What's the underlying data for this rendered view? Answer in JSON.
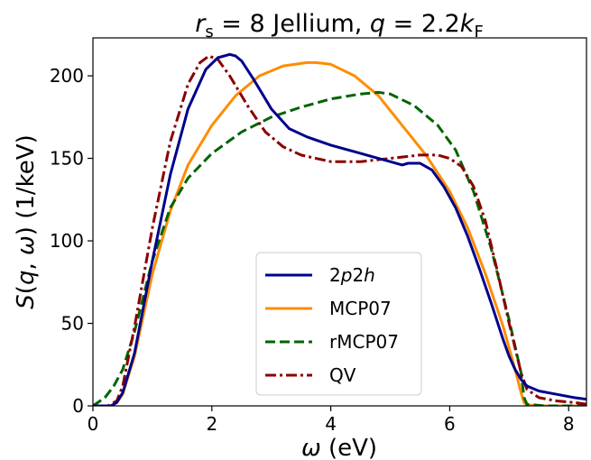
{
  "chart_data": {
    "type": "line",
    "title": "r_s = 8 Jellium, q = 2.2k_F",
    "title_parts": {
      "r": "r",
      "r_sub": "s",
      "eq1": " = 8 Jellium, ",
      "q": "q",
      "eq2": " = 2.2",
      "k": "k",
      "k_sub": "F"
    },
    "xlabel": "ω (eV)",
    "xlabel_parts": {
      "sym": "ω",
      "unit": " (eV)"
    },
    "ylabel": "S(q, ω) (1/keV)",
    "ylabel_parts": {
      "S": "S",
      "open": "(",
      "q": "q",
      "comma": ", ",
      "w": "ω",
      "close": ")",
      "unit": " (1/keV)"
    },
    "xlim": [
      0,
      8.3
    ],
    "ylim": [
      0,
      223
    ],
    "xticks": [
      0,
      2,
      4,
      6,
      8
    ],
    "yticks": [
      0,
      50,
      100,
      150,
      200
    ],
    "grid": false,
    "legend_position": "lower-center",
    "series": [
      {
        "name": "2p2h",
        "name_parts": {
          "pre": "2",
          "ital1": "p",
          "mid": "2",
          "ital2": "h"
        },
        "color": "#00008b",
        "dash": "solid",
        "x": [
          0,
          0.3,
          0.4,
          0.5,
          0.7,
          1.0,
          1.3,
          1.6,
          1.9,
          2.1,
          2.3,
          2.4,
          2.5,
          2.7,
          3.0,
          3.3,
          3.6,
          4.0,
          4.4,
          4.8,
          5.0,
          5.2,
          5.3,
          5.5,
          5.7,
          5.9,
          6.1,
          6.3,
          6.5,
          6.7,
          6.9,
          7.0,
          7.1,
          7.2,
          7.3,
          7.5,
          7.8,
          8.1,
          8.3
        ],
        "y": [
          0,
          0,
          2,
          8,
          32,
          88,
          140,
          180,
          204,
          211,
          213,
          212,
          209,
          198,
          180,
          168,
          163,
          158,
          154,
          150,
          148,
          146,
          147,
          147,
          143,
          133,
          120,
          103,
          83,
          62,
          40,
          30,
          22,
          16,
          12,
          9,
          7,
          5,
          4
        ]
      },
      {
        "name": "MCP07",
        "color": "#ff8c00",
        "dash": "solid",
        "x": [
          0,
          0.3,
          0.4,
          0.5,
          0.7,
          1.0,
          1.3,
          1.6,
          2.0,
          2.4,
          2.8,
          3.2,
          3.6,
          3.75,
          4.0,
          4.4,
          4.8,
          5.2,
          5.6,
          6.0,
          6.3,
          6.6,
          6.9,
          7.1,
          7.2,
          7.25,
          7.3,
          7.6,
          8.0,
          8.3
        ],
        "y": [
          0,
          0,
          2,
          7,
          30,
          80,
          118,
          146,
          170,
          188,
          200,
          206,
          208,
          208,
          207,
          200,
          188,
          170,
          152,
          130,
          108,
          80,
          48,
          22,
          8,
          2,
          0.5,
          0,
          0,
          0
        ]
      },
      {
        "name": "rMCP07",
        "color": "#006400",
        "dash": "dashed",
        "x": [
          0,
          0.2,
          0.35,
          0.5,
          0.7,
          1.0,
          1.3,
          1.6,
          2.0,
          2.5,
          3.0,
          3.5,
          4.0,
          4.5,
          4.8,
          5.0,
          5.4,
          5.8,
          6.1,
          6.4,
          6.7,
          7.0,
          7.2,
          7.25,
          7.3,
          7.6,
          8.0,
          8.3
        ],
        "y": [
          0,
          5,
          12,
          22,
          45,
          88,
          120,
          138,
          153,
          166,
          175,
          181,
          186,
          189,
          190,
          189,
          182,
          170,
          155,
          130,
          95,
          52,
          20,
          5,
          1,
          0,
          0,
          0
        ]
      },
      {
        "name": "QV",
        "color": "#8b0000",
        "dash": "dashdot",
        "x": [
          0,
          0.25,
          0.4,
          0.5,
          0.7,
          1.0,
          1.3,
          1.6,
          1.8,
          1.95,
          2.1,
          2.3,
          2.6,
          2.9,
          3.2,
          3.5,
          4.0,
          4.5,
          5.0,
          5.5,
          5.8,
          6.0,
          6.2,
          6.4,
          6.6,
          6.8,
          7.0,
          7.2,
          7.3,
          7.5,
          7.8,
          8.1,
          8.3
        ],
        "y": [
          0,
          0,
          3,
          12,
          48,
          108,
          160,
          195,
          208,
          212,
          210,
          200,
          182,
          166,
          157,
          152,
          148,
          148,
          150,
          152,
          152,
          150,
          145,
          133,
          112,
          82,
          50,
          20,
          10,
          5,
          3,
          2,
          1
        ]
      }
    ]
  }
}
